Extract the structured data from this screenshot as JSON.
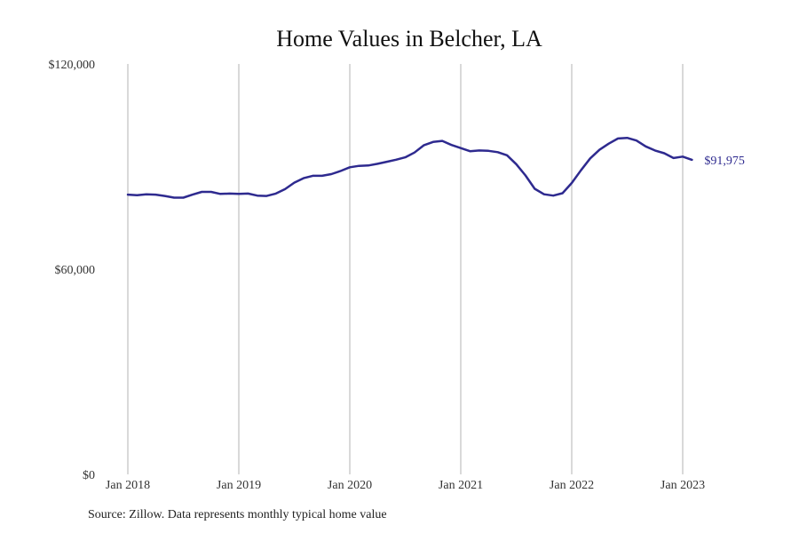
{
  "chart_data": {
    "type": "line",
    "title": "Home Values in Belcher, LA",
    "xlabel": "",
    "ylabel": "",
    "x_ticks": [
      "Jan 2018",
      "Jan 2019",
      "Jan 2020",
      "Jan 2021",
      "Jan 2022",
      "Jan 2023"
    ],
    "y_ticks": [
      "$0",
      "$60,000",
      "$120,000"
    ],
    "ylim": [
      0,
      120000
    ],
    "xlim": [
      "2018-01",
      "2023-02"
    ],
    "grid": "vertical",
    "line_color": "#2e2a8f",
    "series": [
      {
        "name": "",
        "x": [
          "2018-01",
          "2018-02",
          "2018-03",
          "2018-04",
          "2018-05",
          "2018-06",
          "2018-07",
          "2018-08",
          "2018-09",
          "2018-10",
          "2018-11",
          "2018-12",
          "2019-01",
          "2019-02",
          "2019-03",
          "2019-04",
          "2019-05",
          "2019-06",
          "2019-07",
          "2019-08",
          "2019-09",
          "2019-10",
          "2019-11",
          "2019-12",
          "2020-01",
          "2020-02",
          "2020-03",
          "2020-04",
          "2020-05",
          "2020-06",
          "2020-07",
          "2020-08",
          "2020-09",
          "2020-10",
          "2020-11",
          "2020-12",
          "2021-01",
          "2021-02",
          "2021-03",
          "2021-04",
          "2021-05",
          "2021-06",
          "2021-07",
          "2021-08",
          "2021-09",
          "2021-10",
          "2021-11",
          "2021-12",
          "2022-01",
          "2022-02",
          "2022-03",
          "2022-04",
          "2022-05",
          "2022-06",
          "2022-07",
          "2022-08",
          "2022-09",
          "2022-10",
          "2022-11",
          "2022-12",
          "2023-01",
          "2023-02"
        ],
        "values": [
          81800,
          81600,
          81900,
          81800,
          81400,
          80900,
          80900,
          81800,
          82600,
          82600,
          82000,
          82100,
          82000,
          82100,
          81500,
          81400,
          82100,
          83400,
          85300,
          86600,
          87300,
          87300,
          87800,
          88700,
          89800,
          90200,
          90300,
          90800,
          91400,
          92000,
          92700,
          94100,
          96200,
          97200,
          97500,
          96300,
          95400,
          94500,
          94700,
          94600,
          94200,
          93300,
          90700,
          87400,
          83500,
          81900,
          81500,
          82200,
          85200,
          88900,
          92400,
          94900,
          96700,
          98200,
          98400,
          97600,
          95900,
          94700,
          93900,
          92500,
          92900,
          91975
        ]
      }
    ],
    "end_label": "$91,975"
  },
  "footer": {
    "source": "Source: Zillow. Data represents monthly typical home value"
  }
}
